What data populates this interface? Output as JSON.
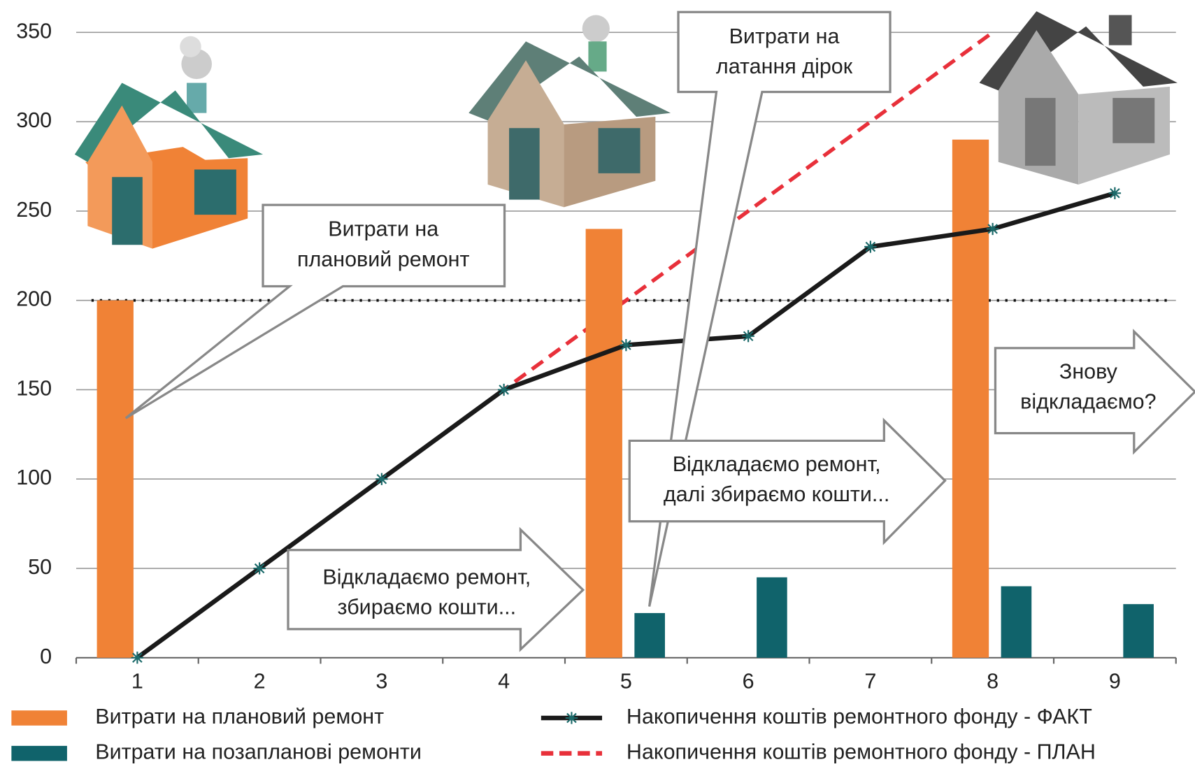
{
  "chart_data": {
    "type": "bar",
    "categories": [
      "1",
      "2",
      "3",
      "4",
      "5",
      "6",
      "7",
      "8",
      "9"
    ],
    "ylim": [
      0,
      350
    ],
    "yticks": [
      0,
      50,
      100,
      150,
      200,
      250,
      300,
      350
    ],
    "grid": true,
    "reference_line": 200,
    "series": [
      {
        "name": "Витрати на плановий ремонт",
        "type": "bar",
        "color": "#f08236",
        "values": [
          200,
          null,
          null,
          null,
          240,
          null,
          null,
          290,
          null
        ]
      },
      {
        "name": "Витрати на позапланові ремонти",
        "type": "bar",
        "color": "#10636b",
        "values": [
          null,
          null,
          null,
          null,
          25,
          45,
          null,
          40,
          30
        ]
      },
      {
        "name": "Накопичення коштів ремонтного фонду - ФАКТ",
        "type": "line",
        "color": "#1a1a1a",
        "marker": "asterisk",
        "values": [
          0,
          50,
          100,
          150,
          175,
          180,
          230,
          240,
          260
        ]
      },
      {
        "name": "Накопичення коштів ремонтного фонду - ПЛАН",
        "type": "line",
        "color": "#e8303a",
        "linestyle": "dashed",
        "values": [
          0,
          50,
          100,
          150,
          200,
          250,
          300,
          350,
          null
        ]
      }
    ],
    "annotations": [
      {
        "lines": [
          "Витрати на",
          "плановий ремонт"
        ]
      },
      {
        "lines": [
          "Витрати на",
          "латання дірок"
        ]
      },
      {
        "lines": [
          "Відкладаємо ремонт,",
          "збираємо кошти..."
        ]
      },
      {
        "lines": [
          "Відкладаємо ремонт,",
          "далі збираємо кошти..."
        ]
      },
      {
        "lines": [
          "Знову",
          "відкладаємо?"
        ]
      }
    ]
  }
}
